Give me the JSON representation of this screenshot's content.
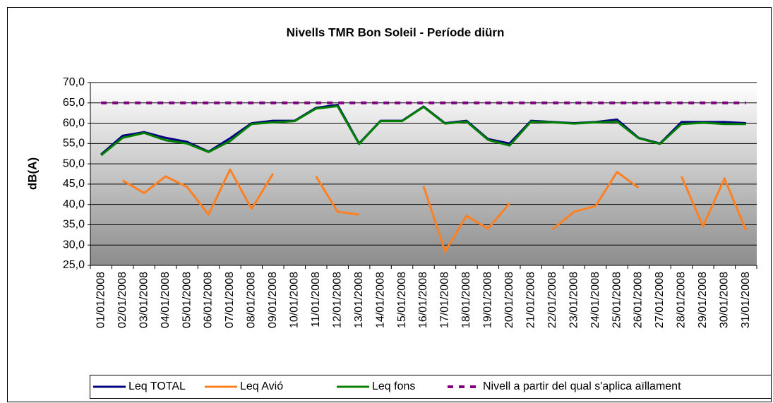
{
  "chart_data": {
    "type": "line",
    "title": "Nivells TMR Bon Soleil - Període diürn",
    "y_label": "dB(A)",
    "categories": [
      "01/01/2008",
      "02/01/2008",
      "03/01/2008",
      "04/01/2008",
      "05/01/2008",
      "06/01/2008",
      "07/01/2008",
      "08/01/2008",
      "09/01/2008",
      "10/01/2008",
      "11/01/2008",
      "12/01/2008",
      "13/01/2008",
      "14/01/2008",
      "15/01/2008",
      "16/01/2008",
      "17/01/2008",
      "18/01/2008",
      "19/01/2008",
      "20/01/2008",
      "21/01/2008",
      "22/01/2008",
      "23/01/2008",
      "24/01/2008",
      "25/01/2008",
      "26/01/2008",
      "27/01/2008",
      "28/01/2008",
      "29/01/2008",
      "30/01/2008",
      "31/01/2008"
    ],
    "series": [
      {
        "name": "Leq TOTAL",
        "color": "#000080",
        "values": [
          52.3,
          56.9,
          57.8,
          56.4,
          55.4,
          53.0,
          56.3,
          60.0,
          60.6,
          60.6,
          63.8,
          64.5,
          55.0,
          60.6,
          60.6,
          64.1,
          60.0,
          60.6,
          56.1,
          55.0,
          60.6,
          60.3,
          60.0,
          60.3,
          60.9,
          56.4,
          55.0,
          60.3,
          60.3,
          60.3,
          60.0
        ]
      },
      {
        "name": "Leq Avió",
        "color": "#ff8020",
        "values": [
          null,
          45.9,
          42.8,
          46.9,
          44.3,
          37.5,
          48.6,
          38.9,
          47.6,
          null,
          46.9,
          38.2,
          37.5,
          null,
          null,
          44.5,
          28.4,
          37.2,
          34.0,
          40.3,
          null,
          33.9,
          38.2,
          39.6,
          48.0,
          44.1,
          null,
          46.9,
          34.6,
          46.4,
          33.6
        ]
      },
      {
        "name": "Leq fons",
        "color": "#008000",
        "values": [
          52.1,
          56.4,
          57.6,
          55.8,
          55.0,
          52.9,
          55.6,
          59.8,
          60.2,
          60.5,
          63.6,
          64.2,
          54.9,
          60.5,
          60.5,
          64.0,
          59.9,
          60.4,
          55.9,
          54.5,
          60.4,
          60.2,
          59.9,
          60.2,
          60.4,
          56.3,
          54.9,
          59.8,
          60.1,
          59.8,
          59.8
        ]
      },
      {
        "name": "Nivell a partir del qual s'aplica aïllament",
        "color": "#800080",
        "dashed": true,
        "values": [
          65,
          65,
          65,
          65,
          65,
          65,
          65,
          65,
          65,
          65,
          65,
          65,
          65,
          65,
          65,
          65,
          65,
          65,
          65,
          65,
          65,
          65,
          65,
          65,
          65,
          65,
          65,
          65,
          65,
          65,
          65
        ]
      }
    ],
    "ylim": [
      25,
      70
    ],
    "yticks": [
      {
        "value": 25,
        "label": "25,0"
      },
      {
        "value": 30,
        "label": "30,0"
      },
      {
        "value": 35,
        "label": "35,0"
      },
      {
        "value": 40,
        "label": "40,0"
      },
      {
        "value": 45,
        "label": "45,0"
      },
      {
        "value": 50,
        "label": "50,0"
      },
      {
        "value": 55,
        "label": "55,0"
      },
      {
        "value": 60,
        "label": "60,0"
      },
      {
        "value": 65,
        "label": "65,0"
      },
      {
        "value": 70,
        "label": "70,0"
      }
    ],
    "grid": true,
    "legend": "bottom"
  }
}
